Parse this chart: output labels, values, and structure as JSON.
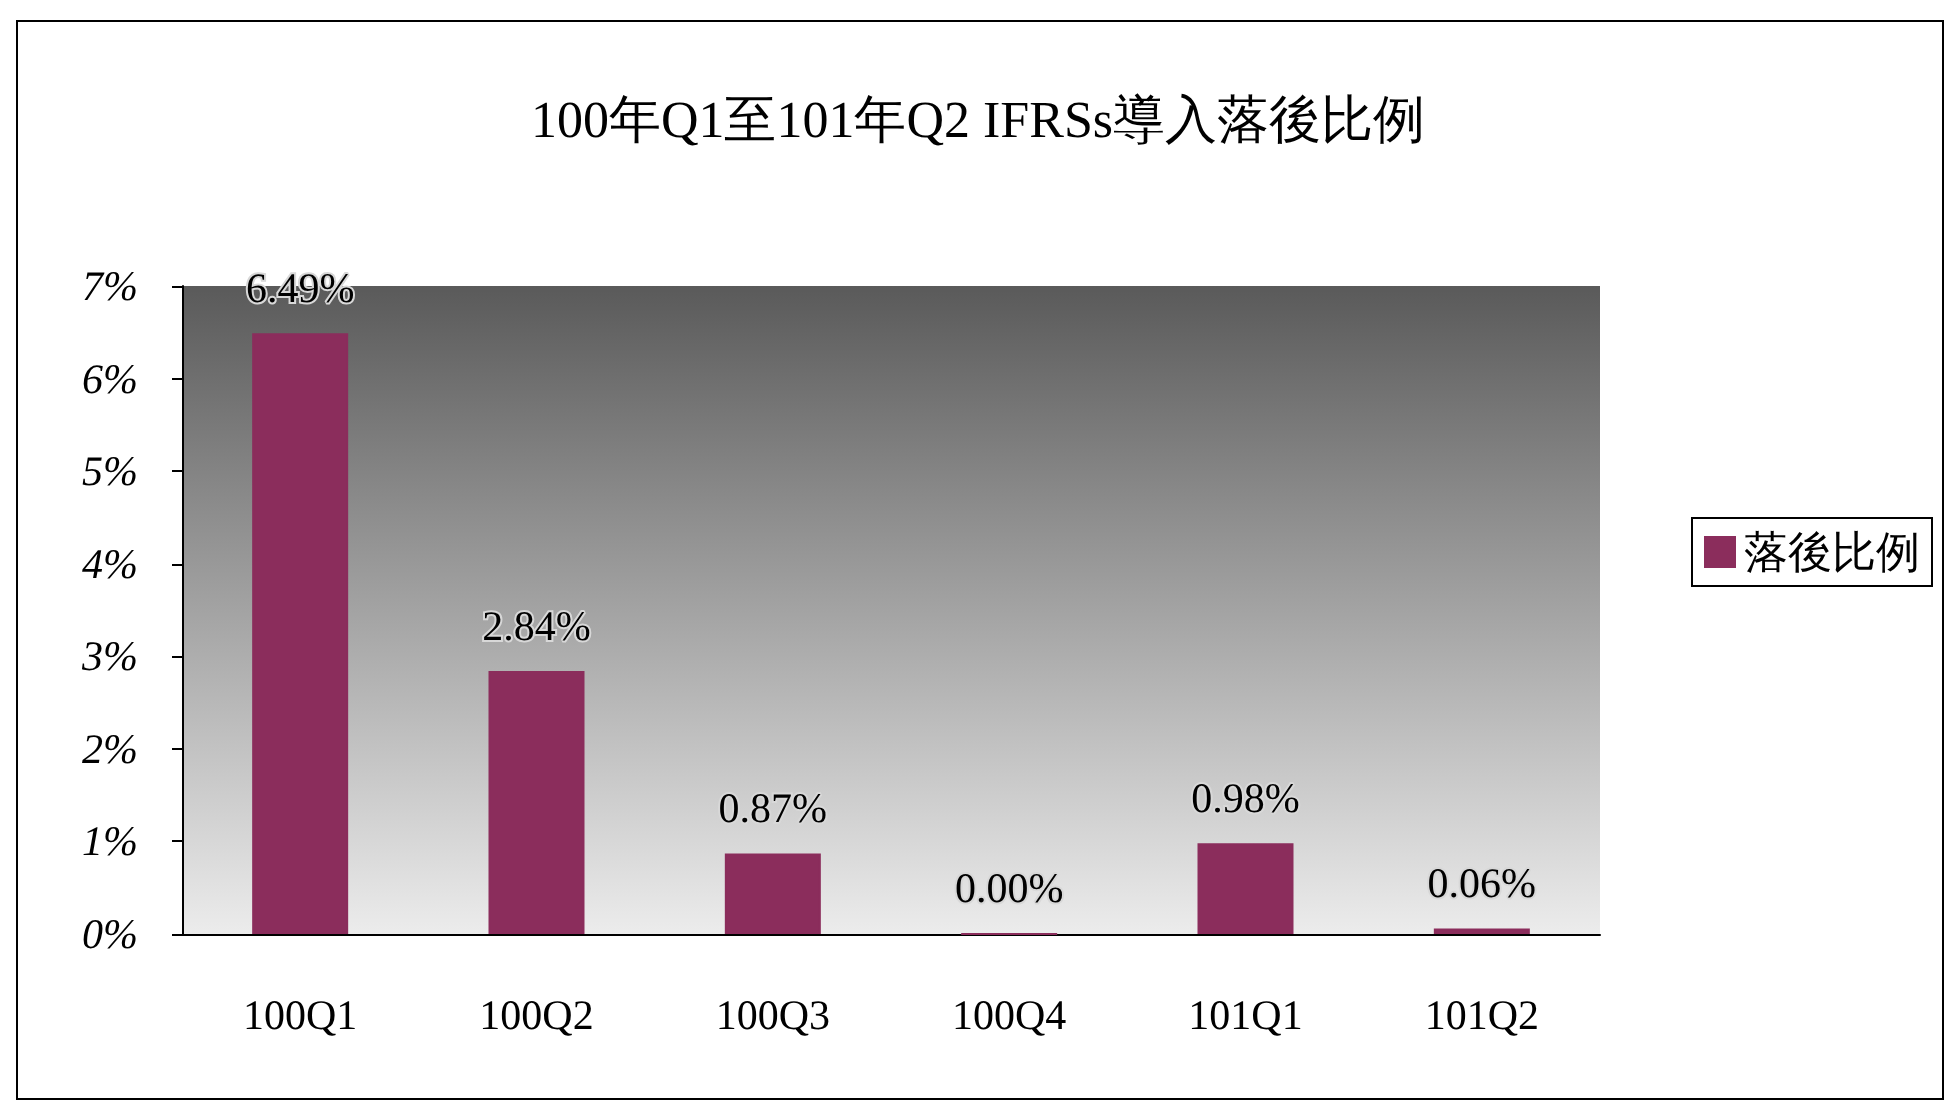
{
  "chart_data": {
    "type": "bar",
    "title": "100年Q1至101年Q2 IFRSs導入落後比例",
    "categories": [
      "100Q1",
      "100Q2",
      "100Q3",
      "100Q4",
      "101Q1",
      "101Q2"
    ],
    "series": [
      {
        "name": "落後比例",
        "color": "#8b2d5c",
        "values": [
          6.49,
          2.84,
          0.87,
          0.0,
          0.98,
          0.06
        ],
        "value_labels": [
          "6.49%",
          "2.84%",
          "0.87%",
          "0.00%",
          "0.98%",
          "0.06%"
        ]
      }
    ],
    "ylim": [
      0,
      7
    ],
    "yticks": [
      {
        "value": 0,
        "label": "0%"
      },
      {
        "value": 1,
        "label": "1%"
      },
      {
        "value": 2,
        "label": "2%"
      },
      {
        "value": 3,
        "label": "3%"
      },
      {
        "value": 4,
        "label": "4%"
      },
      {
        "value": 5,
        "label": "5%"
      },
      {
        "value": 6,
        "label": "6%"
      },
      {
        "value": 7,
        "label": "7%"
      }
    ],
    "grid": false,
    "legend": "right"
  }
}
